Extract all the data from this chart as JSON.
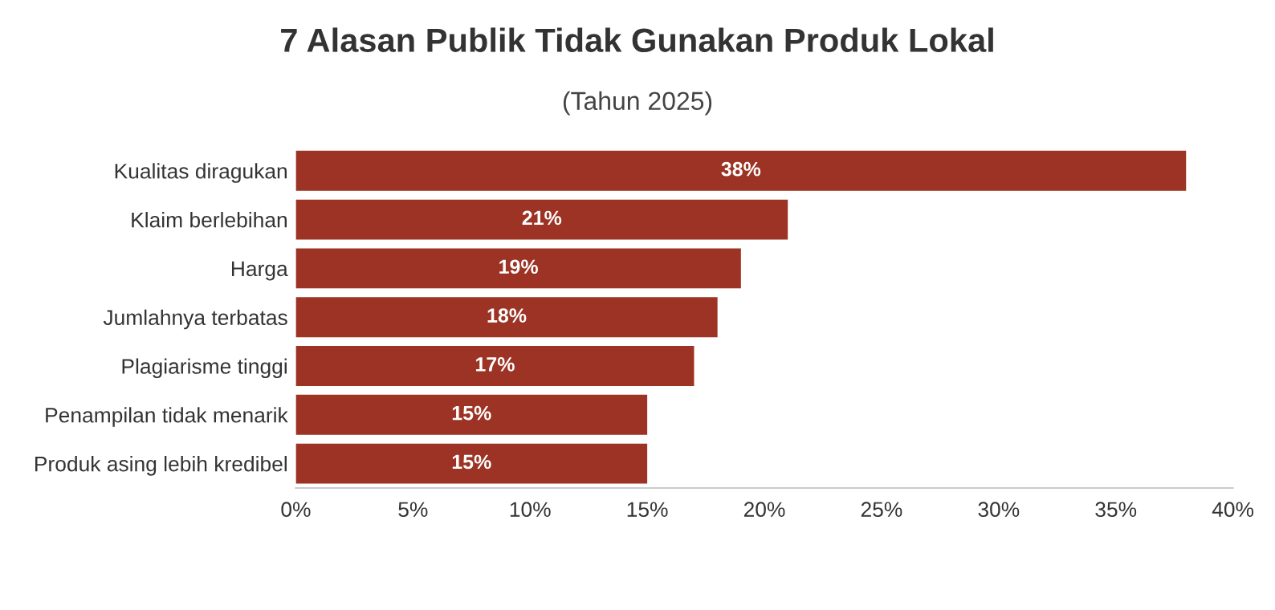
{
  "chart_data": {
    "type": "bar",
    "orientation": "horizontal",
    "title": "7 Alasan Publik Tidak Gunakan Produk Lokal",
    "subtitle": "(Tahun 2025)",
    "categories": [
      "Kualitas diragukan",
      "Klaim berlebihan",
      "Harga",
      "Jumlahnya terbatas",
      "Plagiarisme tinggi",
      "Penampilan tidak menarik",
      "Produk asing lebih kredibel"
    ],
    "values": [
      38,
      21,
      19,
      18,
      17,
      15,
      15
    ],
    "value_labels": [
      "38%",
      "21%",
      "19%",
      "18%",
      "17%",
      "15%",
      "15%"
    ],
    "color": "#9c3324",
    "xlim": [
      0,
      40
    ],
    "xticks": [
      {
        "value": 0,
        "label": "0%"
      },
      {
        "value": 5,
        "label": "5%"
      },
      {
        "value": 10,
        "label": "10%"
      },
      {
        "value": 15,
        "label": "15%"
      },
      {
        "value": 20,
        "label": "20%"
      },
      {
        "value": 25,
        "label": "25%"
      },
      {
        "value": 30,
        "label": "30%"
      },
      {
        "value": 35,
        "label": "35%"
      },
      {
        "value": 40,
        "label": "40%"
      }
    ],
    "grid": false,
    "legend": false
  }
}
